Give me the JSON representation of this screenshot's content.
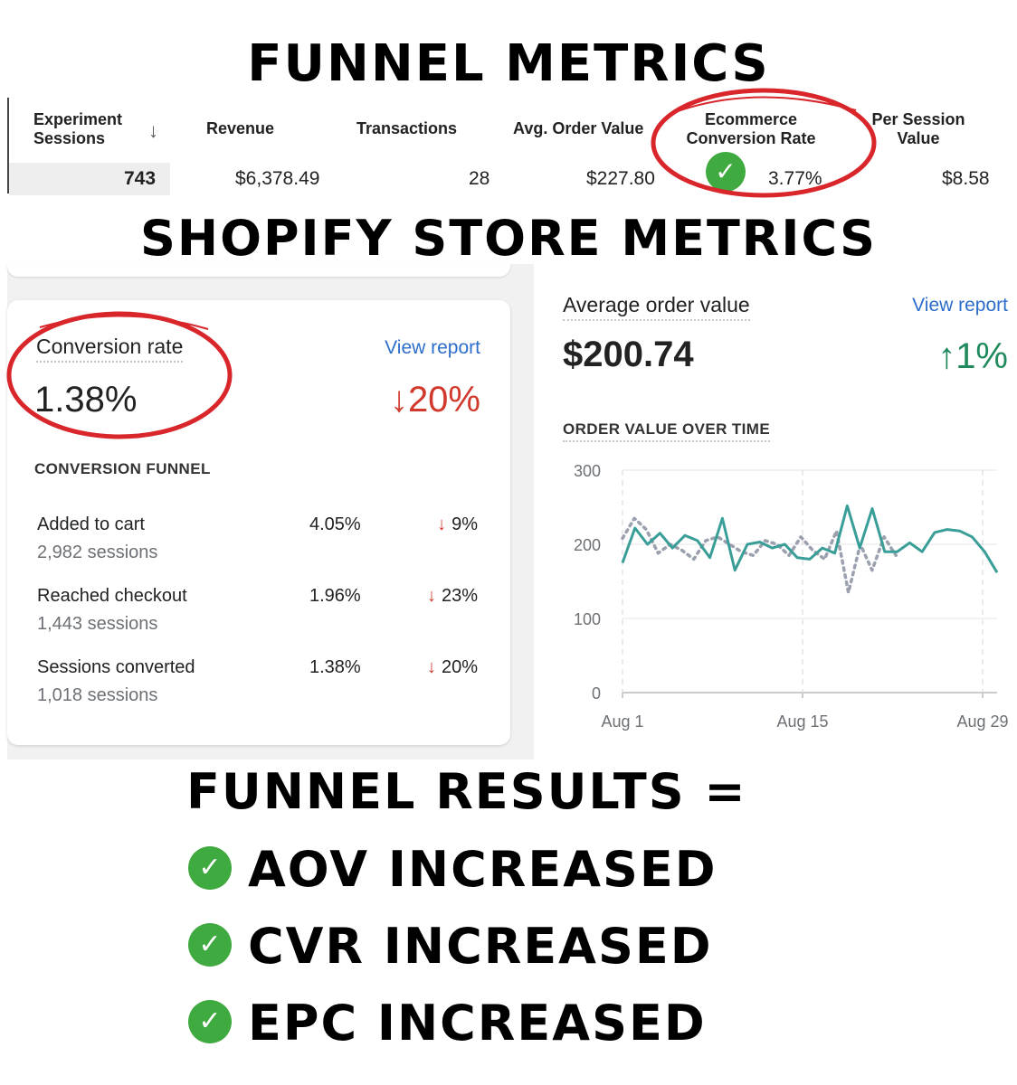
{
  "titles": {
    "funnel_metrics": "FUNNEL METRICS",
    "shopify_metrics": "SHOPIFY STORE METRICS",
    "funnel_results": "FUNNEL RESULTS ="
  },
  "experiment_table": {
    "headers": {
      "sessions_l1": "Experiment",
      "sessions_l2": "Sessions",
      "revenue": "Revenue",
      "transactions": "Transactions",
      "aov": "Avg. Order Value",
      "ecr_l1": "Ecommerce",
      "ecr_l2": "Conversion Rate",
      "psv_l1": "Per Session",
      "psv_l2": "Value"
    },
    "values": {
      "sessions": "743",
      "revenue": "$6,378.49",
      "transactions": "28",
      "aov": "$227.80",
      "ecr": "3.77%",
      "psv": "$8.58"
    },
    "sort_icon": "arrow-down-icon",
    "highlight_color": "#d8262b",
    "check_color": "#3faa3f"
  },
  "conversion_card": {
    "title": "Conversion rate",
    "link": "View report",
    "value": "1.38%",
    "delta": "20%",
    "delta_arrow": "↓",
    "funnel_title": "CONVERSION FUNNEL",
    "funnel": [
      {
        "name": "Added to cart",
        "sessions": "2,982 sessions",
        "pct": "4.05%",
        "delta": "9%"
      },
      {
        "name": "Reached checkout",
        "sessions": "1,443 sessions",
        "pct": "1.96%",
        "delta": "23%"
      },
      {
        "name": "Sessions converted",
        "sessions": "1,018 sessions",
        "pct": "1.38%",
        "delta": "20%"
      }
    ],
    "down_arrow": "↓"
  },
  "aov_card": {
    "title": "Average order value",
    "link": "View report",
    "value": "$200.74",
    "delta": "1%",
    "delta_arrow": "↑",
    "chart_title": "ORDER VALUE OVER TIME"
  },
  "chart_data": {
    "type": "line",
    "title": "ORDER VALUE OVER TIME",
    "x_tick_labels": [
      "Aug 1",
      "Aug 15",
      "Aug 29"
    ],
    "y_ticks": [
      "0",
      "100",
      "200",
      "300"
    ],
    "ylim": [
      0,
      300
    ],
    "grid": true,
    "series": [
      {
        "style": "solid",
        "color": "#3a9e98",
        "values": [
          175,
          222,
          200,
          215,
          195,
          212,
          205,
          182,
          235,
          165,
          200,
          203,
          195,
          200,
          182,
          180,
          195,
          188,
          252,
          195,
          248,
          190,
          190,
          202,
          190,
          216,
          220,
          218,
          210,
          190,
          162
        ]
      },
      {
        "style": "dotted",
        "color": "#9aa0ad",
        "values": [
          208,
          235,
          220,
          188,
          200,
          192,
          180,
          205,
          210,
          200,
          190,
          185,
          205,
          200,
          185,
          210,
          192,
          180,
          218,
          135,
          200,
          165,
          210,
          185
        ]
      }
    ]
  },
  "results": [
    {
      "label": "AOV INCREASED"
    },
    {
      "label": "CVR INCREASED"
    },
    {
      "label": "EPC INCREASED"
    }
  ],
  "check_symbol": "✓"
}
